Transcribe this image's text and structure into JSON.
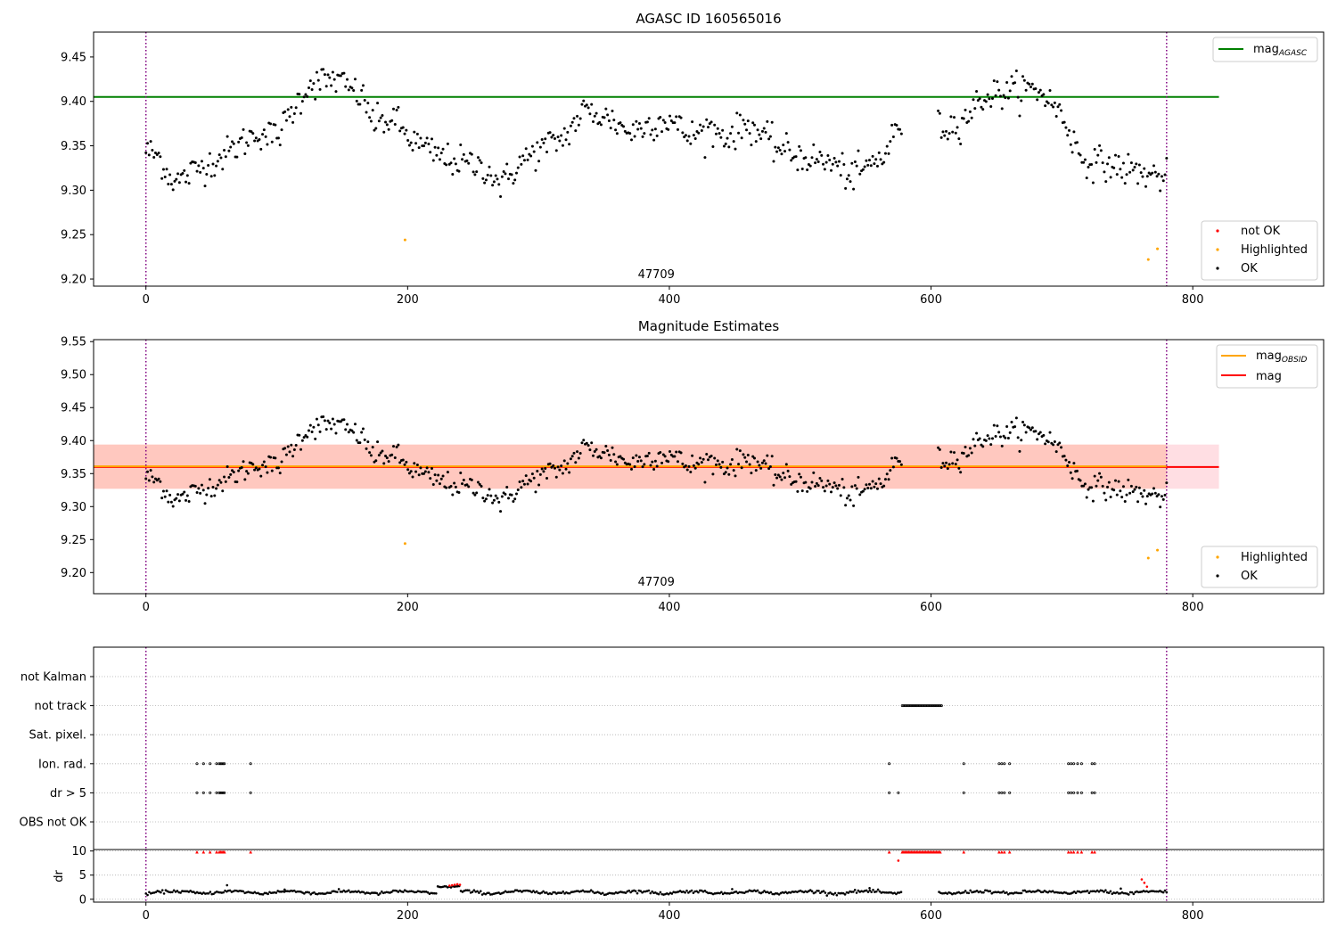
{
  "chart_data": [
    {
      "type": "scatter",
      "title": "AGASC ID 160565016",
      "xlabel": "",
      "ylabel": "",
      "xlim": [
        -40,
        900
      ],
      "ylim": [
        9.192,
        9.478
      ],
      "xticks": [
        0,
        200,
        400,
        600,
        800
      ],
      "yticks": [
        9.2,
        9.25,
        9.3,
        9.35,
        9.4,
        9.45
      ],
      "ytick_labels": [
        "9.20",
        "9.25",
        "9.30",
        "9.35",
        "9.40",
        "9.45"
      ],
      "annotation": "47709",
      "annotation_x": 390,
      "obs_boundaries": [
        0,
        780
      ],
      "reference_lines": [
        {
          "name": "mag",
          "sub": "AGASC",
          "y": 9.405,
          "x_range": [
            -40,
            820
          ],
          "color": "#008000"
        }
      ],
      "series": [
        {
          "name": "not OK",
          "color": "#ff0000",
          "points": []
        },
        {
          "name": "Highlighted",
          "color": "#ffa500",
          "points": [
            [
              198,
              9.244
            ],
            [
              766,
              9.222
            ],
            [
              773,
              9.234
            ]
          ]
        },
        {
          "name": "OK",
          "color": "#000000",
          "points": []
        }
      ],
      "ok_trend": {
        "x_range": [
          0,
          780
        ],
        "gaps": [
          [
            578,
            605
          ]
        ],
        "knots": [
          [
            0,
            9.345
          ],
          [
            10,
            9.338
          ],
          [
            18,
            9.315
          ],
          [
            25,
            9.31
          ],
          [
            40,
            9.325
          ],
          [
            55,
            9.335
          ],
          [
            70,
            9.35
          ],
          [
            85,
            9.365
          ],
          [
            100,
            9.36
          ],
          [
            110,
            9.385
          ],
          [
            125,
            9.42
          ],
          [
            145,
            9.425
          ],
          [
            165,
            9.405
          ],
          [
            175,
            9.375
          ],
          [
            190,
            9.38
          ],
          [
            200,
            9.36
          ],
          [
            215,
            9.345
          ],
          [
            230,
            9.335
          ],
          [
            245,
            9.33
          ],
          [
            260,
            9.325
          ],
          [
            272,
            9.305
          ],
          [
            285,
            9.33
          ],
          [
            300,
            9.345
          ],
          [
            320,
            9.36
          ],
          [
            335,
            9.39
          ],
          [
            355,
            9.38
          ],
          [
            370,
            9.365
          ],
          [
            385,
            9.375
          ],
          [
            400,
            9.38
          ],
          [
            415,
            9.36
          ],
          [
            430,
            9.37
          ],
          [
            445,
            9.36
          ],
          [
            460,
            9.375
          ],
          [
            480,
            9.35
          ],
          [
            495,
            9.34
          ],
          [
            510,
            9.335
          ],
          [
            525,
            9.33
          ],
          [
            540,
            9.315
          ],
          [
            555,
            9.33
          ],
          [
            565,
            9.34
          ],
          [
            575,
            9.375
          ],
          [
            612,
            9.37
          ],
          [
            625,
            9.38
          ],
          [
            640,
            9.405
          ],
          [
            655,
            9.41
          ],
          [
            670,
            9.415
          ],
          [
            685,
            9.41
          ],
          [
            700,
            9.385
          ],
          [
            715,
            9.335
          ],
          [
            730,
            9.33
          ],
          [
            745,
            9.325
          ],
          [
            760,
            9.32
          ],
          [
            775,
            9.315
          ],
          [
            780,
            9.315
          ]
        ],
        "noise": 0.009,
        "count": 640
      },
      "legend": {
        "placement": "upper right / lower right"
      }
    },
    {
      "type": "scatter",
      "title": "Magnitude Estimates",
      "xlabel": "",
      "ylabel": "",
      "xlim": [
        -40,
        900
      ],
      "ylim": [
        9.168,
        9.553
      ],
      "xticks": [
        0,
        200,
        400,
        600,
        800
      ],
      "yticks": [
        9.2,
        9.25,
        9.3,
        9.35,
        9.4,
        9.45,
        9.5,
        9.55
      ],
      "ytick_labels": [
        "9.20",
        "9.25",
        "9.30",
        "9.35",
        "9.40",
        "9.45",
        "9.50",
        "9.55"
      ],
      "annotation": "47709",
      "annotation_x": 390,
      "obs_boundaries": [
        0,
        780
      ],
      "bands": [
        {
          "y_range": [
            9.327,
            9.394
          ],
          "x_range": [
            -40,
            820
          ],
          "color": "#ffb6c1",
          "opacity": 0.45
        },
        {
          "y_range": [
            9.327,
            9.394
          ],
          "x_range": [
            -40,
            780
          ],
          "color": "#ffa07a",
          "opacity": 0.35
        }
      ],
      "reference_lines": [
        {
          "name": "mag",
          "sub": "OBSID",
          "y": 9.361,
          "x_range": [
            -40,
            780
          ],
          "color": "#ffa500"
        },
        {
          "name": "mag",
          "sub": "",
          "y": 9.36,
          "x_range": [
            -40,
            820
          ],
          "color": "#ff0000"
        }
      ],
      "series": [
        {
          "name": "Highlighted",
          "color": "#ffa500",
          "points": [
            [
              198,
              9.244
            ],
            [
              766,
              9.222
            ],
            [
              773,
              9.234
            ]
          ]
        },
        {
          "name": "OK",
          "color": "#000000",
          "points": []
        }
      ],
      "ok_trend": "same as panel 1",
      "legend": {
        "placement": "upper right / lower right"
      }
    },
    {
      "type": "scatter",
      "title": "",
      "xlabel": "",
      "ylabel": "",
      "xlim": [
        -40,
        900
      ],
      "xticks": [
        0,
        200,
        400,
        600,
        800
      ],
      "obs_boundaries": [
        0,
        780
      ],
      "flag_rows": [
        "not Kalman",
        "not track",
        "Sat. pixel.",
        "Ion. rad.",
        "dr > 5",
        "OBS not OK"
      ],
      "flags": {
        "not Kalman": [],
        "not track": [
          [
            578,
            608,
            1
          ]
        ],
        "Sat. pixel.": [],
        "Ion. rad.": [
          [
            39,
            1
          ],
          [
            44,
            1
          ],
          [
            49,
            1
          ],
          [
            54,
            1
          ],
          [
            56,
            1
          ],
          [
            57,
            1
          ],
          [
            58,
            1
          ],
          [
            59,
            1
          ],
          [
            60,
            1
          ],
          [
            80,
            1
          ],
          [
            568,
            1
          ],
          [
            625,
            1
          ],
          [
            652,
            1
          ],
          [
            654,
            1
          ],
          [
            656,
            1
          ],
          [
            660,
            1
          ],
          [
            705,
            1
          ],
          [
            707,
            1
          ],
          [
            709,
            1
          ],
          [
            712,
            1
          ],
          [
            715,
            1
          ],
          [
            723,
            1
          ],
          [
            725,
            1
          ]
        ],
        "dr > 5": [
          [
            39,
            1
          ],
          [
            44,
            1
          ],
          [
            49,
            1
          ],
          [
            54,
            1
          ],
          [
            56,
            1
          ],
          [
            57,
            1
          ],
          [
            58,
            1
          ],
          [
            59,
            1
          ],
          [
            60,
            1
          ],
          [
            80,
            1
          ],
          [
            568,
            1
          ],
          [
            575,
            1
          ],
          [
            625,
            1
          ],
          [
            652,
            1
          ],
          [
            654,
            1
          ],
          [
            656,
            1
          ],
          [
            660,
            1
          ],
          [
            705,
            1
          ],
          [
            707,
            1
          ],
          [
            709,
            1
          ],
          [
            712,
            1
          ],
          [
            715,
            1
          ],
          [
            723,
            1
          ],
          [
            725,
            1
          ]
        ],
        "OBS not OK": []
      }
    },
    {
      "type": "scatter",
      "title": "",
      "xlabel": "",
      "ylabel": "dr",
      "xlim": [
        -40,
        900
      ],
      "ylim": [
        -0.6,
        10.3
      ],
      "xticks": [
        0,
        200,
        400,
        600,
        800
      ],
      "xtick_labels": [
        "0",
        "200",
        "400",
        "600",
        "800"
      ],
      "yticks": [
        0,
        5,
        10
      ],
      "ytick_labels": [
        "0",
        "5",
        "10"
      ],
      "obs_boundaries": [
        0,
        780
      ],
      "clipped_markers": {
        "y": 9.8,
        "x": [
          39,
          44,
          49,
          54,
          56,
          57,
          58,
          59,
          60,
          80,
          568,
          578,
          579,
          580,
          581,
          582,
          583,
          584,
          585,
          586,
          587,
          588,
          589,
          590,
          591,
          592,
          593,
          594,
          595,
          596,
          597,
          598,
          599,
          600,
          601,
          602,
          603,
          604,
          605,
          606,
          607,
          625,
          652,
          654,
          656,
          660,
          705,
          707,
          709,
          712,
          715,
          723,
          725
        ],
        "color": "#ff0000"
      },
      "red_points": [
        [
          232,
          2.8
        ],
        [
          234,
          2.9
        ],
        [
          236,
          3.0
        ],
        [
          238,
          3.1
        ],
        [
          240,
          3.0
        ],
        [
          575,
          8.0
        ],
        [
          761,
          4.1
        ],
        [
          763,
          3.4
        ],
        [
          765,
          2.6
        ]
      ],
      "black_points": [
        [
          62,
          2.9
        ],
        [
          106,
          2.0
        ],
        [
          448,
          2.1
        ],
        [
          553,
          2.3
        ],
        [
          745,
          2.2
        ]
      ],
      "dr_trend": {
        "x_range": [
          0,
          780
        ],
        "gaps": [
          [
            578,
            605
          ]
        ],
        "base": 1.1,
        "amplitude": 0.55,
        "noise": 0.15,
        "count": 620,
        "raised_segments": [
          [
            222,
            240,
            2.6
          ]
        ]
      }
    }
  ]
}
